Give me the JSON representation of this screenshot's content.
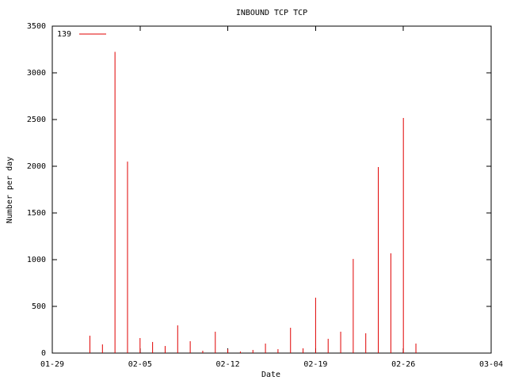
{
  "chart_data": {
    "type": "impulse",
    "title": "INBOUND TCP TCP",
    "x_label": "Date",
    "y_label": "Number per day",
    "x": [
      "02-01",
      "02-02",
      "02-03",
      "02-04",
      "02-05",
      "02-06",
      "02-07",
      "02-08",
      "02-09",
      "02-10",
      "02-11",
      "02-12",
      "02-13",
      "02-14",
      "02-15",
      "02-16",
      "02-17",
      "02-18",
      "02-19",
      "02-20",
      "02-21",
      "02-22",
      "02-23",
      "02-24",
      "02-25",
      "02-26",
      "02-27"
    ],
    "series": [
      {
        "name": "139",
        "color": "#e00000",
        "values": [
          186,
          93,
          3225,
          2050,
          161,
          119,
          76,
          297,
          127,
          25,
          229,
          42,
          17,
          34,
          102,
          42,
          271,
          51,
          593,
          153,
          229,
          1008,
          212,
          1992,
          1068,
          2517,
          102
        ]
      }
    ],
    "xlim": [
      "01-29",
      "03-04"
    ],
    "xticks": [
      "01-29",
      "02-05",
      "02-12",
      "02-19",
      "02-26",
      "03-04"
    ],
    "ylim": [
      0,
      3500
    ],
    "yticks": [
      0,
      500,
      1000,
      1500,
      2000,
      2500,
      3000,
      3500
    ],
    "legend": "top-left"
  }
}
